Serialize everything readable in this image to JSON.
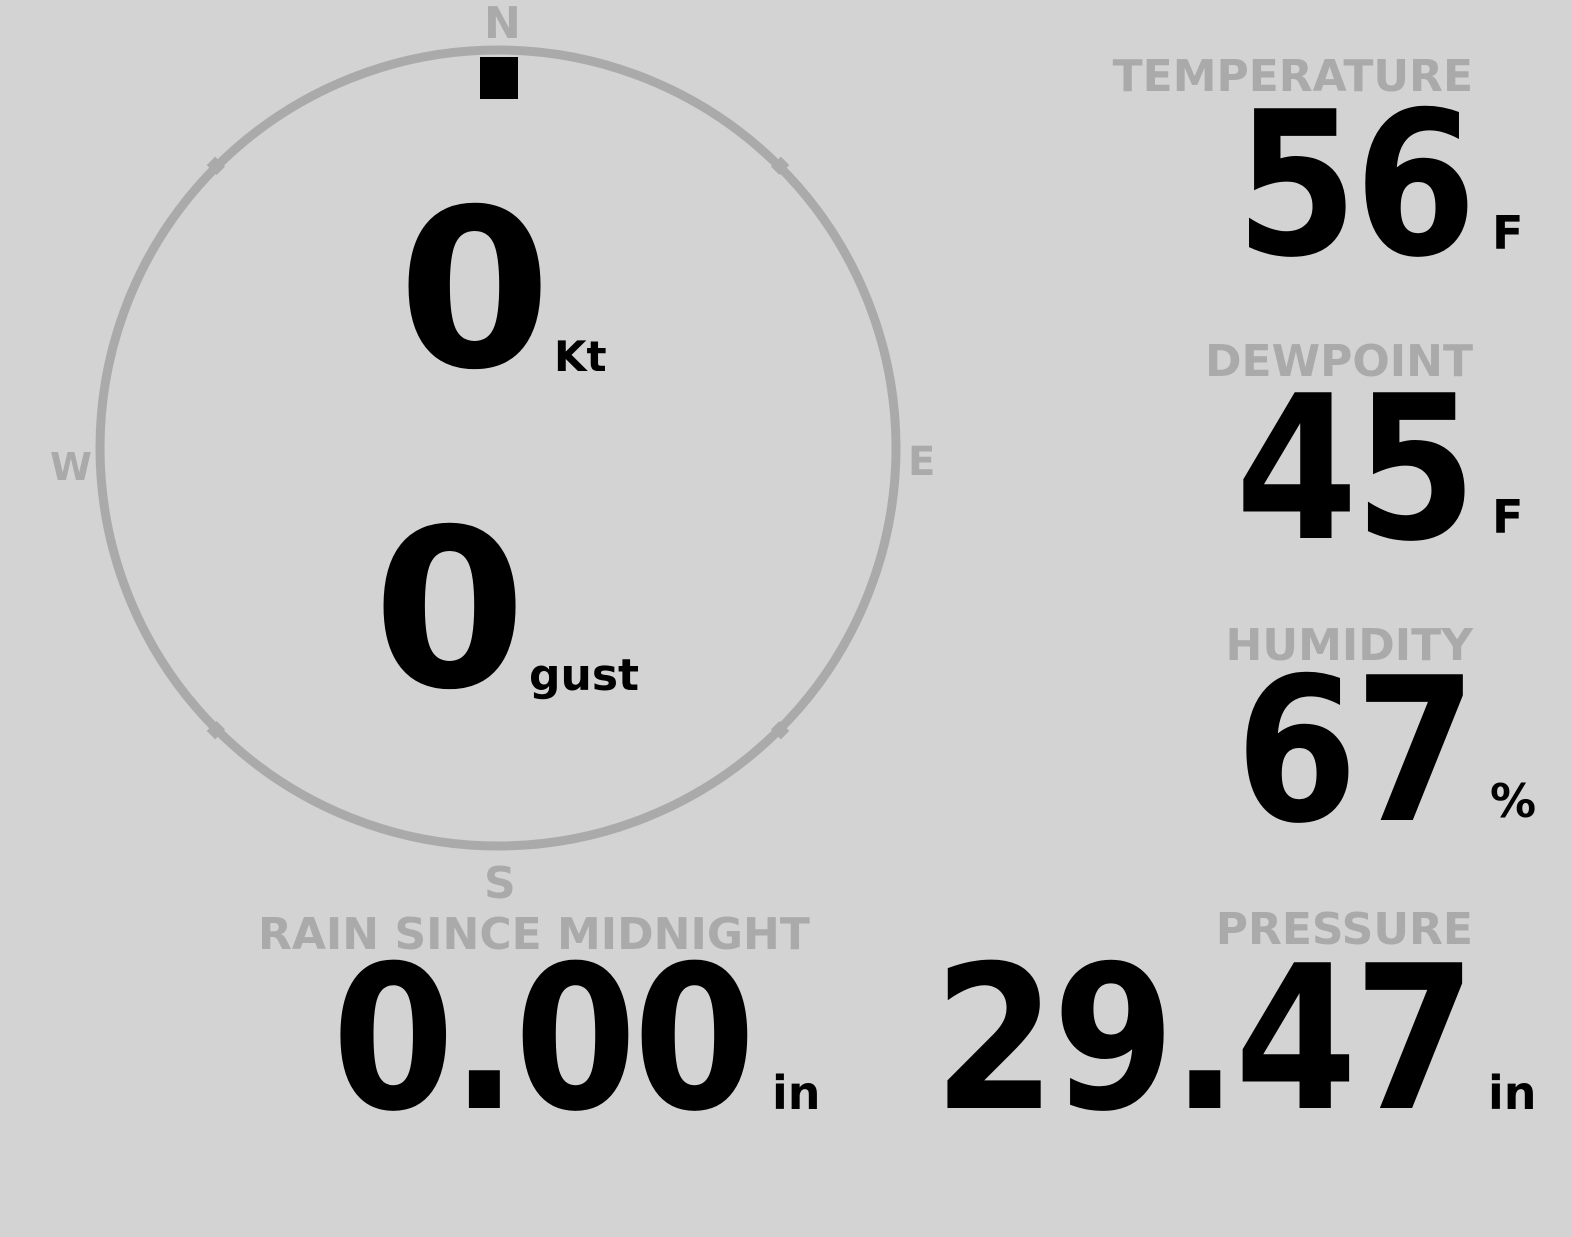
{
  "wind": {
    "speed": "0",
    "speed_unit": "Kt",
    "gust": "0",
    "gust_unit": "gust",
    "direction_deg": 0,
    "compass": {
      "n": "N",
      "e": "E",
      "s": "S",
      "w": "W"
    }
  },
  "temperature": {
    "label": "TEMPERATURE",
    "value": "56",
    "unit": "F"
  },
  "dewpoint": {
    "label": "DEWPOINT",
    "value": "45",
    "unit": "F"
  },
  "humidity": {
    "label": "HUMIDITY",
    "value": "67",
    "unit": "%"
  },
  "pressure": {
    "label": "PRESSURE",
    "value": "29.47",
    "unit": "in"
  },
  "rain": {
    "label": "RAIN SINCE MIDNIGHT",
    "value": "0.00",
    "unit": "in"
  },
  "colors": {
    "background": "#d3d3d3",
    "label": "#aaaaaa",
    "value": "#000000",
    "ring": "#aaaaaa"
  }
}
